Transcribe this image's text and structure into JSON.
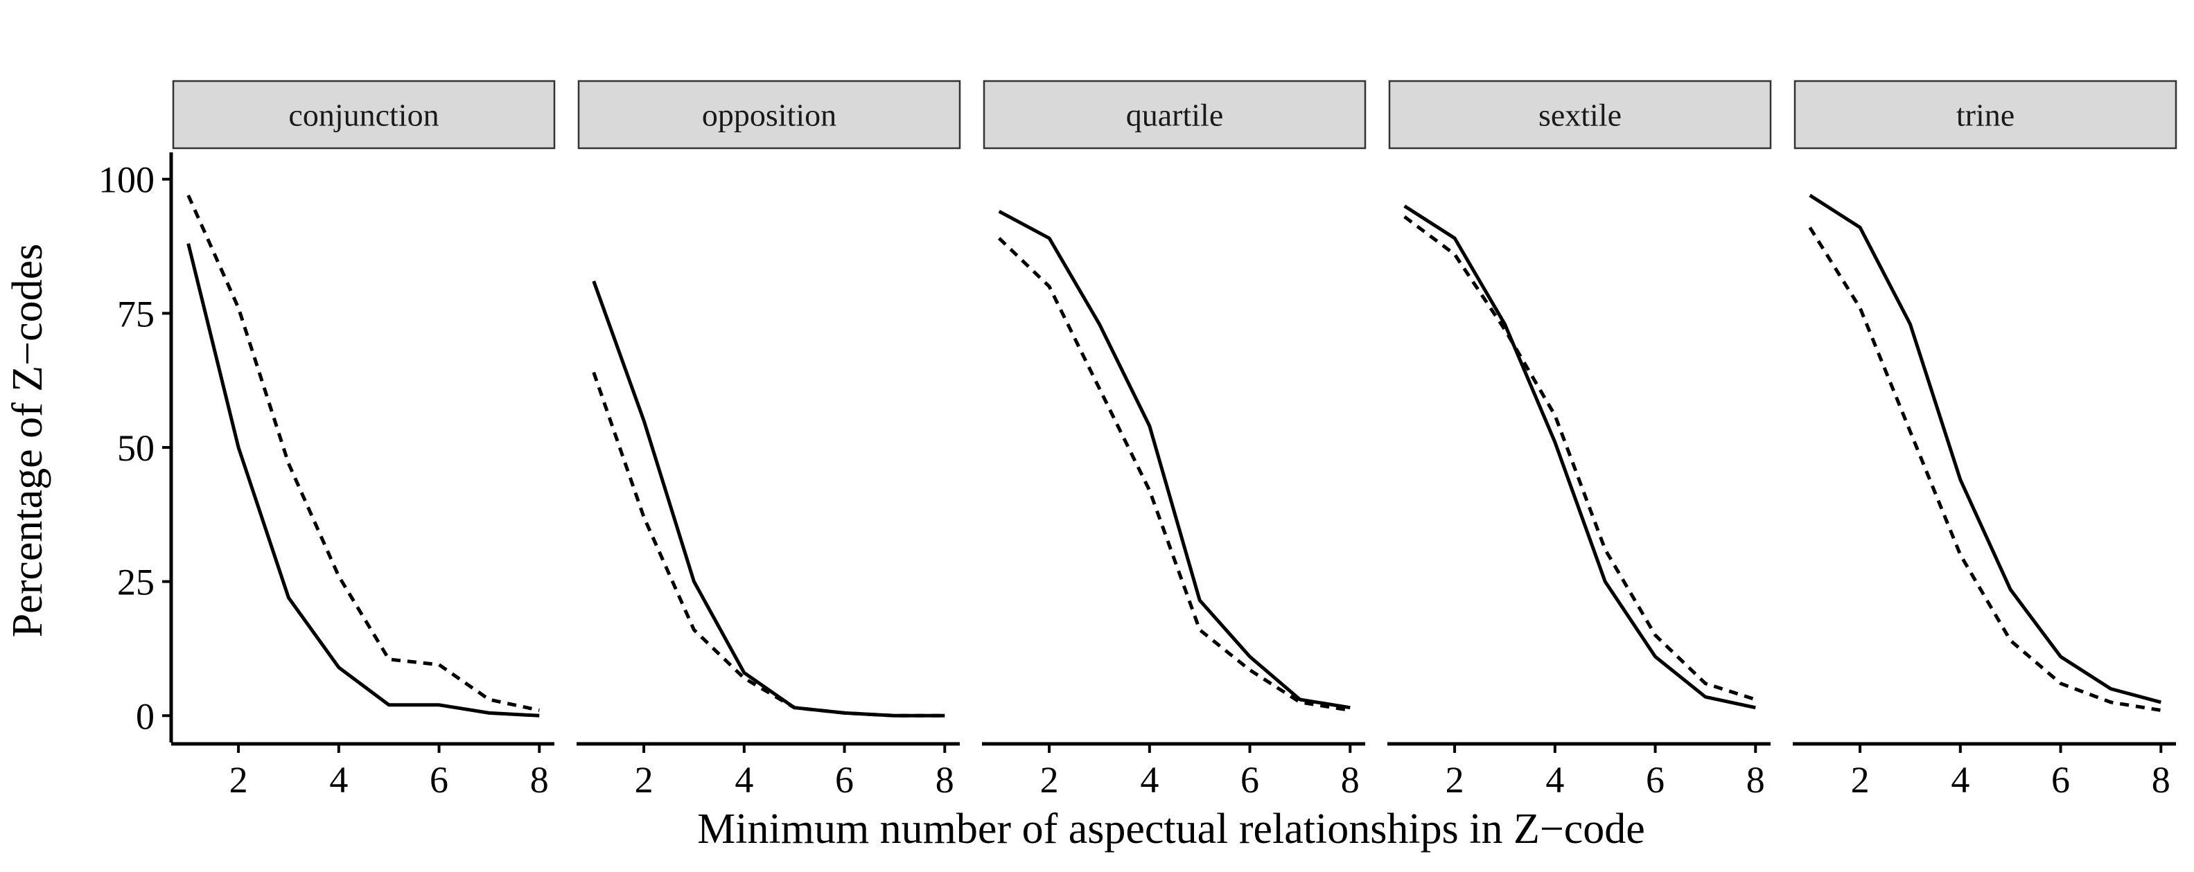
{
  "chart_data": {
    "type": "line",
    "facet_type": "facet_wrap",
    "xlabel": "Minimum number of aspectual relationships in Z−code",
    "ylabel": "Percentage of Z−codes",
    "x": [
      1,
      2,
      3,
      4,
      5,
      6,
      7,
      8
    ],
    "x_ticks": [
      2,
      4,
      6,
      8
    ],
    "y_ticks": [
      0,
      25,
      50,
      75,
      100
    ],
    "xlim": [
      0.7,
      8.3
    ],
    "ylim": [
      -5,
      105
    ],
    "line_color": "#000000",
    "panels": [
      {
        "label": "conjunction",
        "series": [
          {
            "linestyle": "solid",
            "values": [
              88,
              50,
              22,
              9,
              2,
              2,
              0.5,
              0
            ]
          },
          {
            "linestyle": "dashed",
            "values": [
              97,
              76,
              47,
              26,
              10.5,
              9.5,
              3,
              1
            ]
          }
        ]
      },
      {
        "label": "opposition",
        "series": [
          {
            "linestyle": "solid",
            "values": [
              81,
              55,
              25,
              8,
              1.5,
              0.5,
              0,
              0
            ]
          },
          {
            "linestyle": "dashed",
            "values": [
              64,
              37,
              16,
              7,
              1.5,
              0.5,
              0,
              0
            ]
          }
        ]
      },
      {
        "label": "quartile",
        "series": [
          {
            "linestyle": "solid",
            "values": [
              94,
              89,
              73,
              54,
              21.5,
              11,
              3,
              1.5
            ]
          },
          {
            "linestyle": "dashed",
            "values": [
              89,
              80,
              61,
              42,
              16,
              8.5,
              2.5,
              1
            ]
          }
        ]
      },
      {
        "label": "sextile",
        "series": [
          {
            "linestyle": "solid",
            "values": [
              95,
              89,
              73,
              51,
              25,
              11,
              3.5,
              1.5
            ]
          },
          {
            "linestyle": "dashed",
            "values": [
              93,
              86,
              72,
              56,
              31,
              15,
              6,
              3
            ]
          }
        ]
      },
      {
        "label": "trine",
        "series": [
          {
            "linestyle": "solid",
            "values": [
              97,
              91,
              73,
              44,
              23.5,
              11,
              5,
              2.5
            ]
          },
          {
            "linestyle": "dashed",
            "values": [
              91,
              76,
              53,
              30,
              14,
              6,
              2.5,
              1
            ]
          }
        ]
      }
    ]
  }
}
